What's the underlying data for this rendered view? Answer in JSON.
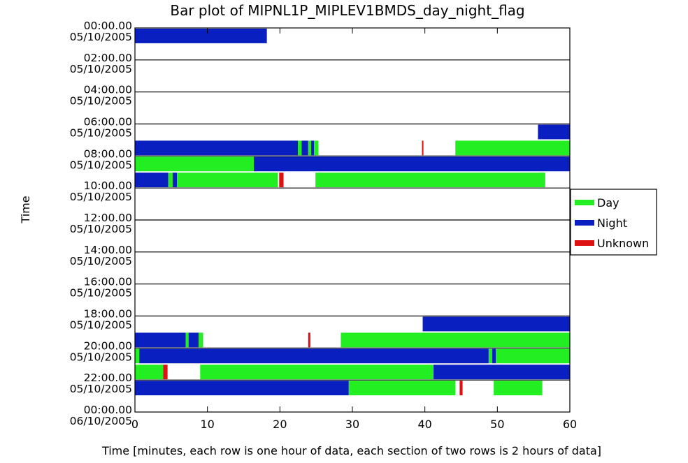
{
  "chart_data": {
    "type": "bar",
    "title": "Bar plot of MIPNL1P_MIPLEV1BMDS_day_night_flag",
    "xlabel": "Time [minutes, each row is one hour of data, each section of two rows is 2 hours of data]",
    "ylabel": "Time",
    "xlim": [
      0,
      60
    ],
    "x_ticks": [
      "0",
      "10",
      "20",
      "30",
      "40",
      "50",
      "60"
    ],
    "y_ticks": [
      {
        "time": "00:00.00",
        "date": "05/10/2005"
      },
      {
        "time": "02:00.00",
        "date": "05/10/2005"
      },
      {
        "time": "04:00.00",
        "date": "05/10/2005"
      },
      {
        "time": "06:00.00",
        "date": "05/10/2005"
      },
      {
        "time": "08:00.00",
        "date": "05/10/2005"
      },
      {
        "time": "10:00.00",
        "date": "05/10/2005"
      },
      {
        "time": "12:00.00",
        "date": "05/10/2005"
      },
      {
        "time": "14:00.00",
        "date": "05/10/2005"
      },
      {
        "time": "16:00.00",
        "date": "05/10/2005"
      },
      {
        "time": "18:00.00",
        "date": "05/10/2005"
      },
      {
        "time": "20:00.00",
        "date": "05/10/2005"
      },
      {
        "time": "22:00.00",
        "date": "05/10/2005"
      },
      {
        "time": "00:00.00",
        "date": "06/10/2005"
      }
    ],
    "legend": {
      "placement": "right",
      "entries": [
        {
          "label": "Day",
          "color": "#22ee22"
        },
        {
          "label": "Night",
          "color": "#0a1fbf"
        },
        {
          "label": "Unknown",
          "color": "#dd1111"
        }
      ]
    },
    "colors": {
      "day": "#22ee22",
      "night": "#0a1fbf",
      "unknown": "#dd1111"
    },
    "rows": [
      {
        "hour": 0,
        "segments": [
          [
            "night",
            0,
            18.2
          ]
        ]
      },
      {
        "hour": 6,
        "segments": [
          [
            "night",
            55.6,
            60
          ]
        ]
      },
      {
        "hour": 7,
        "segments": [
          [
            "night",
            0,
            22.5
          ],
          [
            "day",
            22.5,
            23.0
          ],
          [
            "night",
            23.0,
            23.9
          ],
          [
            "day",
            23.9,
            24.3
          ],
          [
            "night",
            24.3,
            24.7
          ],
          [
            "day",
            24.7,
            25.3
          ],
          [
            "unknown",
            39.6,
            39.8
          ],
          [
            "day",
            44.2,
            60
          ]
        ]
      },
      {
        "hour": 8,
        "segments": [
          [
            "day",
            0,
            16.4
          ],
          [
            "night",
            16.4,
            60
          ]
        ]
      },
      {
        "hour": 9,
        "segments": [
          [
            "night",
            0,
            4.6
          ],
          [
            "day",
            4.6,
            5.2
          ],
          [
            "night",
            5.2,
            5.8
          ],
          [
            "day",
            5.8,
            19.7
          ],
          [
            "unknown",
            19.9,
            20.5
          ],
          [
            "day",
            24.9,
            56.6
          ]
        ]
      },
      {
        "hour": 18,
        "segments": [
          [
            "night",
            39.7,
            60
          ]
        ]
      },
      {
        "hour": 19,
        "segments": [
          [
            "night",
            0,
            7.0
          ],
          [
            "day",
            7.0,
            7.4
          ],
          [
            "night",
            7.4,
            8.8
          ],
          [
            "day",
            8.8,
            9.4
          ],
          [
            "unknown",
            23.9,
            24.2
          ],
          [
            "day",
            28.4,
            60
          ]
        ]
      },
      {
        "hour": 20,
        "segments": [
          [
            "day",
            0,
            0.6
          ],
          [
            "night",
            0.6,
            48.8
          ],
          [
            "day",
            48.8,
            49.3
          ],
          [
            "night",
            49.3,
            49.8
          ],
          [
            "day",
            49.8,
            60
          ]
        ]
      },
      {
        "hour": 21,
        "segments": [
          [
            "day",
            0,
            3.9
          ],
          [
            "unknown",
            3.9,
            4.5
          ],
          [
            "day",
            9.0,
            41.2
          ],
          [
            "night",
            41.2,
            60
          ]
        ]
      },
      {
        "hour": 22,
        "segments": [
          [
            "night",
            0,
            29.5
          ],
          [
            "day",
            29.5,
            44.2
          ],
          [
            "unknown",
            44.8,
            45.2
          ],
          [
            "day",
            49.5,
            56.2
          ]
        ]
      }
    ]
  }
}
